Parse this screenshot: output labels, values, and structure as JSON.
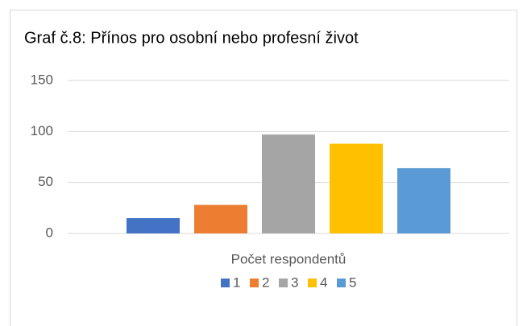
{
  "chart_data": {
    "type": "bar",
    "title": "Graf č.8: Přínos pro osobní nebo profesní život",
    "categories": [
      "Počet respondentů"
    ],
    "series": [
      {
        "name": "1",
        "color": "#4472c4",
        "values": [
          15
        ]
      },
      {
        "name": "2",
        "color": "#ed7d31",
        "values": [
          28
        ]
      },
      {
        "name": "3",
        "color": "#a5a5a5",
        "values": [
          97
        ]
      },
      {
        "name": "4",
        "color": "#ffc000",
        "values": [
          88
        ]
      },
      {
        "name": "5",
        "color": "#5b9bd5",
        "values": [
          64
        ]
      }
    ],
    "ylim": [
      0,
      150
    ],
    "yticks": [
      0,
      50,
      100,
      150
    ],
    "grid": true,
    "legend": "bottom"
  }
}
